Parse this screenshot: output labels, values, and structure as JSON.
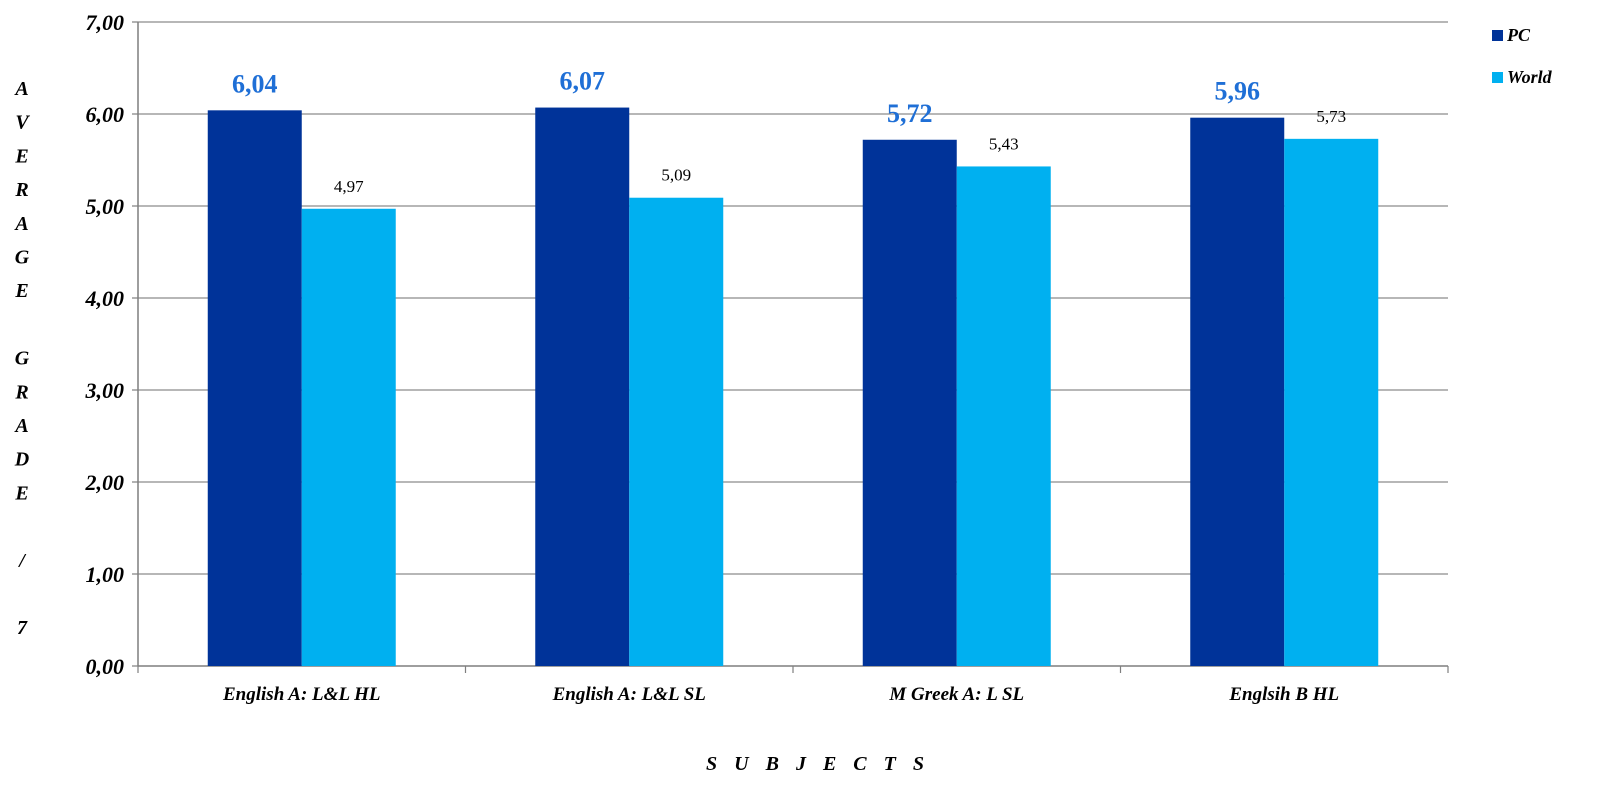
{
  "chart_data": {
    "type": "bar",
    "title": "",
    "xlabel": "S U B J E C T S",
    "ylabel_letters": [
      "A",
      "V",
      "E",
      "R",
      "A",
      "G",
      "E",
      "",
      "G",
      "R",
      "A",
      "D",
      "E",
      "",
      "/",
      "",
      "7"
    ],
    "categories": [
      "English A: L&L HL",
      "English A: L&L SL",
      "M Greek A: L SL",
      "Englsih B HL"
    ],
    "series": [
      {
        "name": "PC",
        "values": [
          6.04,
          6.07,
          5.72,
          5.96
        ],
        "labels": [
          "6,04",
          "6,07",
          "5,72",
          "5,96"
        ],
        "color": "#003399"
      },
      {
        "name": "World",
        "values": [
          4.97,
          5.09,
          5.43,
          5.73
        ],
        "labels": [
          "4,97",
          "5,09",
          "5,43",
          "5,73"
        ],
        "color": "#00b0f0"
      }
    ],
    "ylim": [
      0,
      7
    ],
    "yticks": [
      0,
      1,
      2,
      3,
      4,
      5,
      6,
      7
    ],
    "ytick_labels": [
      "0,00",
      "1,00",
      "2,00",
      "3,00",
      "4,00",
      "5,00",
      "6,00",
      "7,00"
    ],
    "grid": true,
    "legend_position": "top-right"
  }
}
